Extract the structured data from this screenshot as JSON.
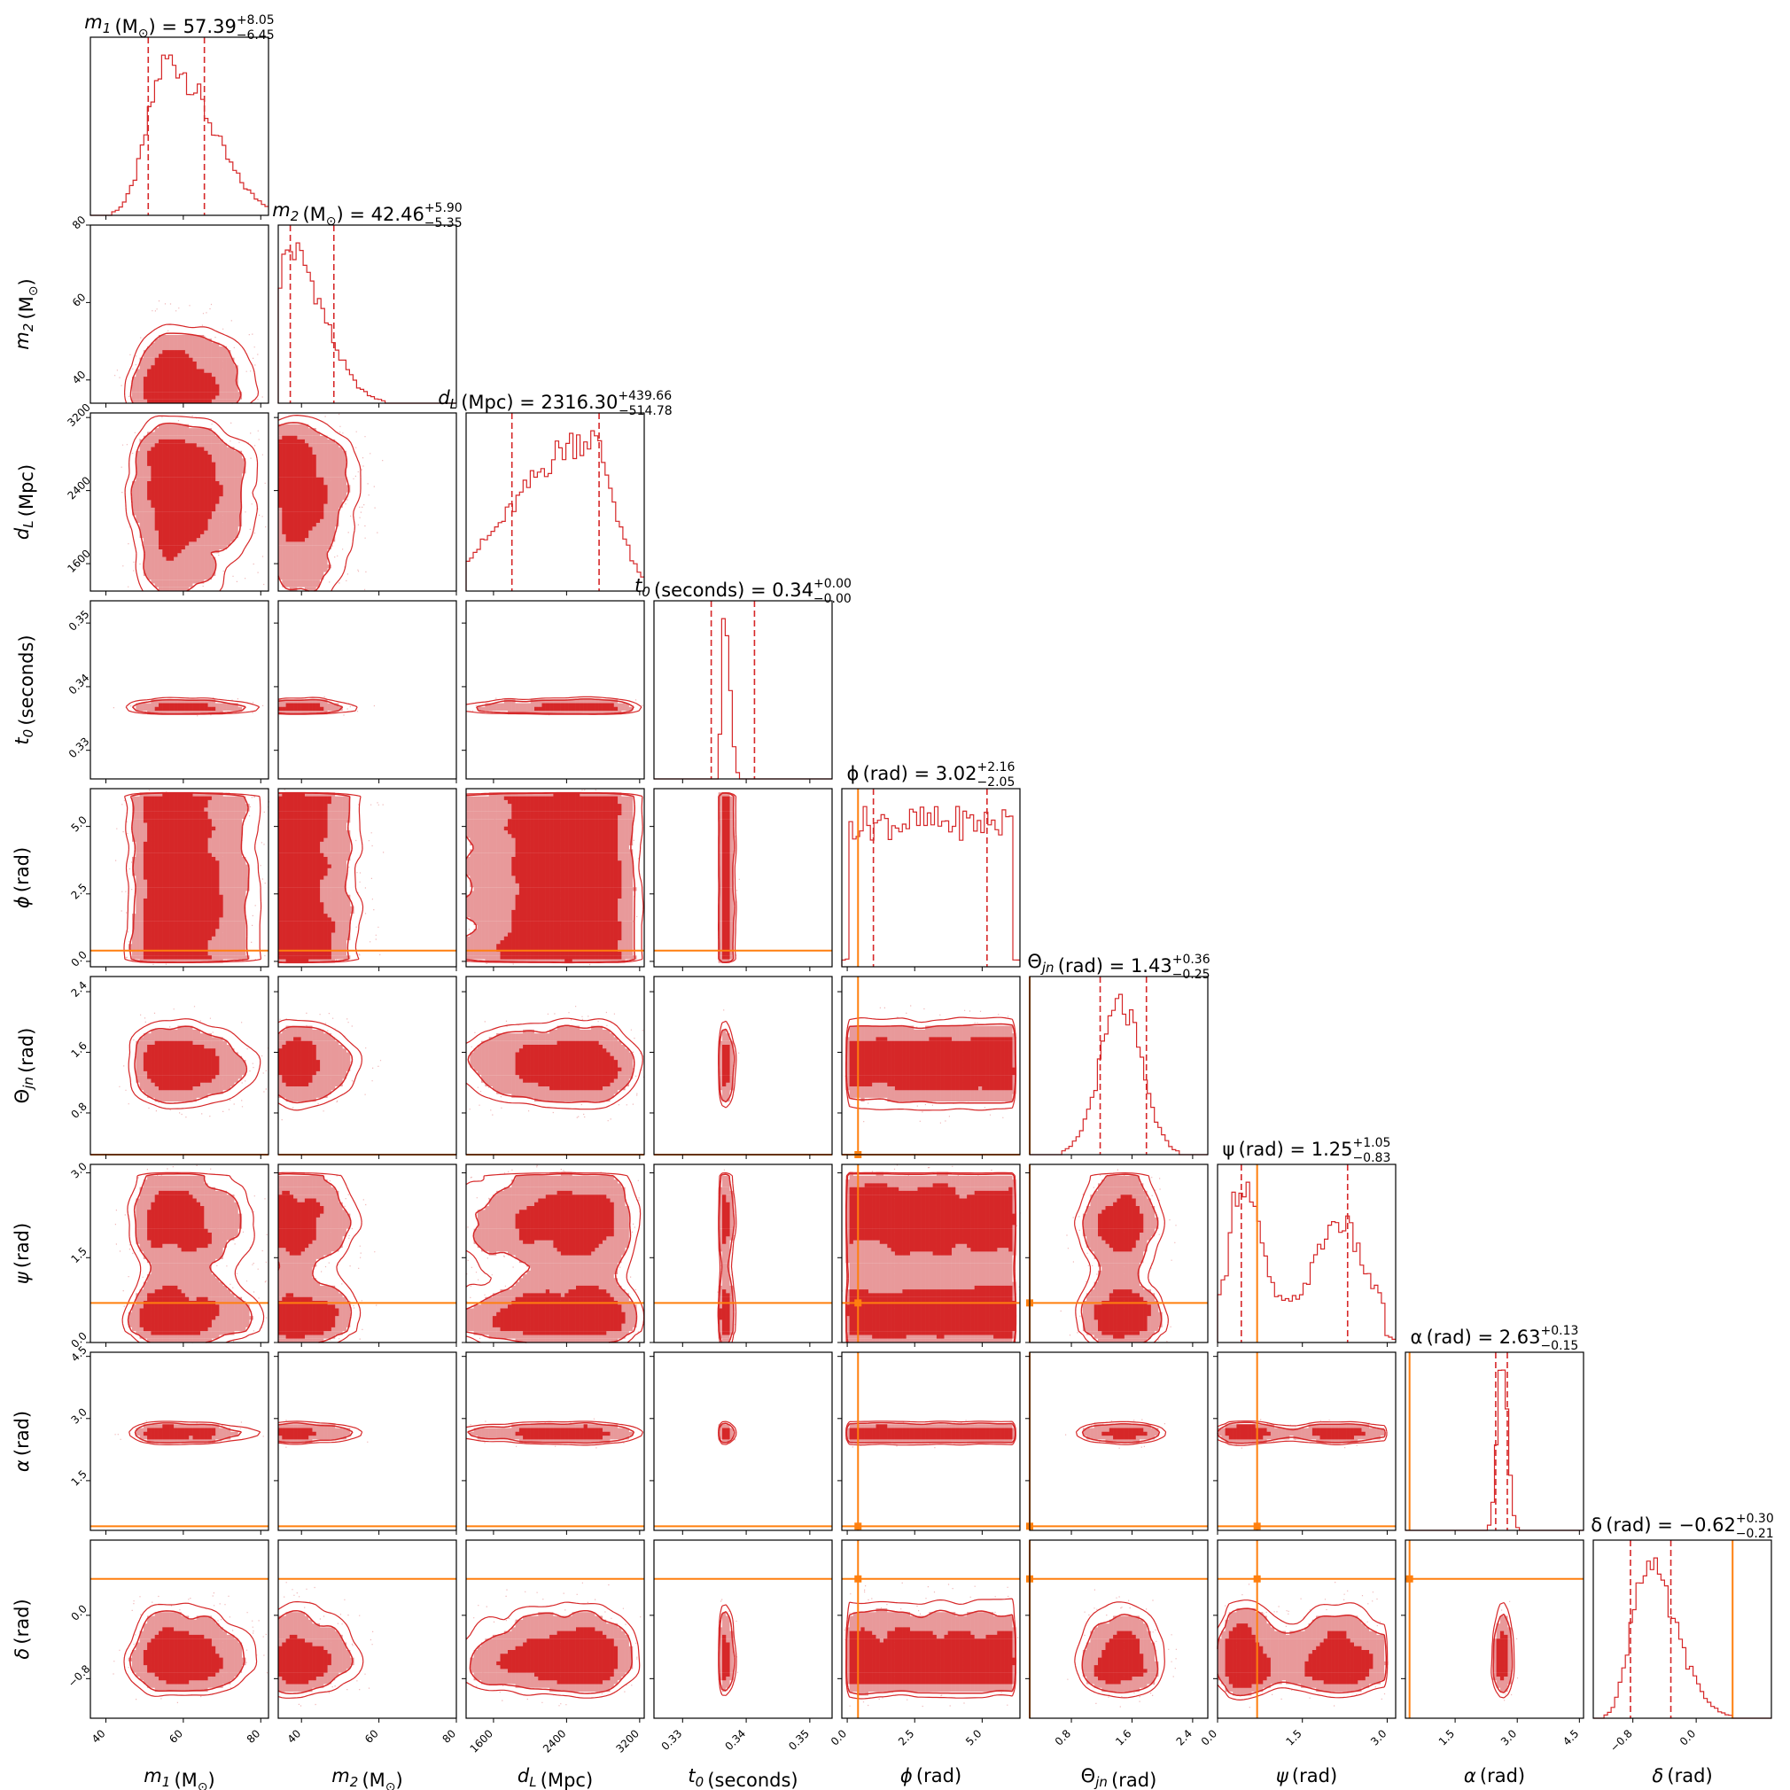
{
  "chart_data": {
    "type": "corner",
    "colors": {
      "posterior": "#d62728",
      "posterior_light": "#e8999a",
      "truth": "#ff7f0e"
    },
    "parameters": [
      {
        "key": "m1",
        "symbol": "m",
        "sub": "1",
        "unit": "(M",
        "unit_sub": "⊙",
        "unit_end": ")",
        "median": "57.39",
        "plus": "8.05",
        "minus": "6.45",
        "sign": "",
        "range": [
          36,
          82
        ],
        "ticks": [
          40,
          60,
          80
        ],
        "tick_labels": [
          "40",
          "60",
          "80"
        ],
        "truth": null,
        "lower": 50.94,
        "upper": 65.44,
        "hist_shape": "skew",
        "hist_peak": 56
      },
      {
        "key": "m2",
        "symbol": "m",
        "sub": "2",
        "unit": "(M",
        "unit_sub": "⊙",
        "unit_end": ")",
        "median": "42.46",
        "plus": "5.90",
        "minus": "5.35",
        "sign": "",
        "range": [
          34,
          80
        ],
        "ticks": [
          40,
          60,
          80
        ],
        "tick_labels": [
          "40",
          "60",
          "80"
        ],
        "truth": null,
        "lower": 37.11,
        "upper": 48.36,
        "hist_shape": "skew",
        "hist_peak": 37
      },
      {
        "key": "dL",
        "symbol": "d",
        "sub": "L",
        "unit": "(Mpc)",
        "unit_sub": "",
        "unit_end": "",
        "median": "2316.30",
        "plus": "439.66",
        "minus": "514.78",
        "sign": "",
        "range": [
          1300,
          3250
        ],
        "ticks": [
          1600,
          2400,
          3200
        ],
        "tick_labels": [
          "1600",
          "2400",
          "3200"
        ],
        "truth": null,
        "lower": 1801.5,
        "upper": 2755.9,
        "hist_shape": "leftskew",
        "hist_peak": 2650
      },
      {
        "key": "t0",
        "symbol": "t",
        "sub": "0",
        "unit": "(seconds)",
        "unit_sub": "",
        "unit_end": "",
        "median": "0.34",
        "plus": "0.00",
        "minus": "0.00",
        "sign": "",
        "range": [
          0.3255,
          0.3535
        ],
        "ticks": [
          0.33,
          0.34,
          0.35
        ],
        "tick_labels": [
          "0.33",
          "0.34",
          "0.35"
        ],
        "truth": null,
        "lower": 0.3345,
        "upper": 0.3413,
        "hist_shape": "skew",
        "hist_peak": 0.3365
      },
      {
        "key": "phi",
        "symbol": "ϕ",
        "sub": "",
        "unit": "(rad)",
        "unit_sub": "",
        "unit_end": "",
        "median": "3.02",
        "plus": "2.16",
        "minus": "2.05",
        "sign": "",
        "range": [
          -0.2,
          6.4
        ],
        "ticks": [
          0.0,
          2.5,
          5.0
        ],
        "tick_labels": [
          "0.0",
          "2.5",
          "5.0"
        ],
        "truth": 0.4,
        "lower": 0.97,
        "upper": 5.18,
        "hist_shape": "flat",
        "hist_peak": 3.1
      },
      {
        "key": "theta",
        "symbol": "Θ",
        "sub": "jn",
        "unit": "(rad)",
        "unit_sub": "",
        "unit_end": "",
        "median": "1.43",
        "plus": "0.36",
        "minus": "0.25",
        "sign": "",
        "range": [
          0.25,
          2.6
        ],
        "ticks": [
          0.8,
          1.6,
          2.4
        ],
        "tick_labels": [
          "0.8",
          "1.6",
          "2.4"
        ],
        "truth": 0.25,
        "lower": 1.18,
        "upper": 1.79,
        "hist_shape": "normal",
        "hist_peak": 1.45
      },
      {
        "key": "psi",
        "symbol": "ψ",
        "sub": "",
        "unit": "(rad)",
        "unit_sub": "",
        "unit_end": "",
        "median": "1.25",
        "plus": "1.05",
        "minus": "0.83",
        "sign": "",
        "range": [
          0.0,
          3.15
        ],
        "ticks": [
          0.0,
          1.5,
          3.0
        ],
        "tick_labels": [
          "0.0",
          "1.5",
          "3.0"
        ],
        "truth": 0.7,
        "lower": 0.42,
        "upper": 2.3,
        "hist_shape": "bimodal",
        "hist_peak": 0.45
      },
      {
        "key": "alpha",
        "symbol": "α",
        "sub": "",
        "unit": "(rad)",
        "unit_sub": "",
        "unit_end": "",
        "median": "2.63",
        "plus": "0.13",
        "minus": "0.15",
        "sign": "",
        "range": [
          0.3,
          4.6
        ],
        "ticks": [
          1.5,
          3.0,
          4.5
        ],
        "tick_labels": [
          "1.5",
          "3.0",
          "4.5"
        ],
        "truth": 0.4,
        "lower": 2.48,
        "upper": 2.76,
        "hist_shape": "spike",
        "hist_peak": 2.65
      },
      {
        "key": "delta",
        "symbol": "δ",
        "sub": "",
        "unit": "(rad)",
        "unit_sub": "",
        "unit_end": "",
        "median": "0.62",
        "plus": "0.30",
        "minus": "0.21",
        "sign": "−",
        "range": [
          -1.3,
          0.95
        ],
        "ticks": [
          -0.8,
          0.0
        ],
        "tick_labels": [
          "−0.8",
          "0.0"
        ],
        "truth": 0.46,
        "lower": -0.83,
        "upper": -0.32,
        "hist_shape": "skew",
        "hist_peak": -0.65
      }
    ]
  }
}
